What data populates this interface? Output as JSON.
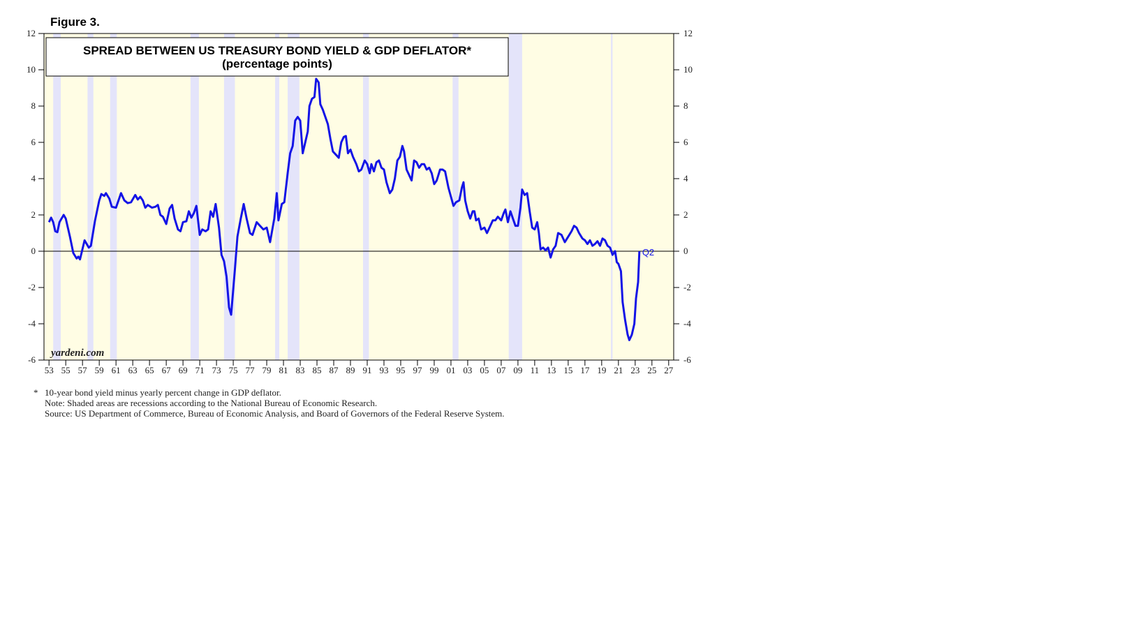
{
  "chart_data": {
    "type": "line",
    "figure_label": "Figure 3.",
    "title": "SPREAD BETWEEN US TREASURY BOND YIELD & GDP DEFLATOR*",
    "subtitle": "(percentage points)",
    "source_mark": "yardeni.com",
    "annotation": "Q2",
    "footnotes": [
      "*",
      "10-year bond yield minus yearly percent change in GDP deflator.",
      "Note: Shaded areas are recessions according to the National Bureau of Economic Research.",
      "Source: US Department of Commerce, Bureau of Economic Analysis, and Board of Governors of the Federal Reserve System."
    ],
    "color": "#1414e6",
    "recession_color": "#e4e4fa",
    "background_color": "#fffde4",
    "recessions": [
      [
        1953.5,
        1954.4
      ],
      [
        1957.6,
        1958.3
      ],
      [
        1960.3,
        1961.1
      ],
      [
        1969.9,
        1970.9
      ],
      [
        1973.9,
        1975.2
      ],
      [
        1980.0,
        1980.5
      ],
      [
        1981.5,
        1982.9
      ],
      [
        1990.5,
        1991.2
      ],
      [
        2001.2,
        2001.9
      ],
      [
        2007.9,
        2009.5
      ],
      [
        2020.1,
        2020.3
      ]
    ],
    "xlim": [
      1952.4,
      2027.6
    ],
    "xticks": [
      {
        "value": 1953,
        "label": "53"
      },
      {
        "value": 1955,
        "label": "55"
      },
      {
        "value": 1957,
        "label": "57"
      },
      {
        "value": 1959,
        "label": "59"
      },
      {
        "value": 1961,
        "label": "61"
      },
      {
        "value": 1963,
        "label": "63"
      },
      {
        "value": 1965,
        "label": "65"
      },
      {
        "value": 1967,
        "label": "67"
      },
      {
        "value": 1969,
        "label": "69"
      },
      {
        "value": 1971,
        "label": "71"
      },
      {
        "value": 1973,
        "label": "73"
      },
      {
        "value": 1975,
        "label": "75"
      },
      {
        "value": 1977,
        "label": "77"
      },
      {
        "value": 1979,
        "label": "79"
      },
      {
        "value": 1981,
        "label": "81"
      },
      {
        "value": 1983,
        "label": "83"
      },
      {
        "value": 1985,
        "label": "85"
      },
      {
        "value": 1987,
        "label": "87"
      },
      {
        "value": 1989,
        "label": "89"
      },
      {
        "value": 1991,
        "label": "91"
      },
      {
        "value": 1993,
        "label": "93"
      },
      {
        "value": 1995,
        "label": "95"
      },
      {
        "value": 1997,
        "label": "97"
      },
      {
        "value": 1999,
        "label": "99"
      },
      {
        "value": 2001,
        "label": "01"
      },
      {
        "value": 2003,
        "label": "03"
      },
      {
        "value": 2005,
        "label": "05"
      },
      {
        "value": 2007,
        "label": "07"
      },
      {
        "value": 2009,
        "label": "09"
      },
      {
        "value": 2011,
        "label": "11"
      },
      {
        "value": 2013,
        "label": "13"
      },
      {
        "value": 2015,
        "label": "15"
      },
      {
        "value": 2017,
        "label": "17"
      },
      {
        "value": 2019,
        "label": "19"
      },
      {
        "value": 2021,
        "label": "21"
      },
      {
        "value": 2023,
        "label": "23"
      },
      {
        "value": 2025,
        "label": "25"
      },
      {
        "value": 2027,
        "label": "27"
      }
    ],
    "ylim": [
      -6,
      12
    ],
    "yticks": [
      -6,
      -4,
      -2,
      0,
      2,
      4,
      6,
      8,
      10,
      12
    ],
    "y2lim": [
      -6,
      12
    ],
    "y2ticks": [
      -6,
      -4,
      -2,
      0,
      2,
      4,
      6,
      8,
      10,
      12
    ],
    "x": [
      1953.0,
      1953.25,
      1953.5,
      1953.75,
      1954.0,
      1954.25,
      1954.75,
      1955.0,
      1955.5,
      1955.9,
      1956.3,
      1956.5,
      1956.7,
      1957.25,
      1957.75,
      1958.0,
      1958.5,
      1959.0,
      1959.25,
      1959.6,
      1959.8,
      1960.2,
      1960.5,
      1961.0,
      1961.3,
      1961.6,
      1962.0,
      1962.4,
      1962.8,
      1963.3,
      1963.6,
      1963.9,
      1964.2,
      1964.5,
      1964.8,
      1965.3,
      1965.7,
      1966.0,
      1966.3,
      1966.6,
      1967.0,
      1967.4,
      1967.7,
      1968.0,
      1968.4,
      1968.7,
      1969.0,
      1969.4,
      1969.7,
      1970.0,
      1970.3,
      1970.6,
      1971.0,
      1971.3,
      1971.7,
      1972.0,
      1972.3,
      1972.6,
      1972.9,
      1973.3,
      1973.6,
      1973.9,
      1974.2,
      1974.5,
      1974.75,
      1975.2,
      1975.5,
      1975.9,
      1976.25,
      1976.6,
      1977.0,
      1977.3,
      1977.8,
      1978.2,
      1978.6,
      1979.0,
      1979.4,
      1979.9,
      1980.2,
      1980.4,
      1980.8,
      1981.1,
      1981.5,
      1981.8,
      1982.1,
      1982.4,
      1982.7,
      1983.0,
      1983.3,
      1983.6,
      1983.9,
      1984.1,
      1984.4,
      1984.7,
      1984.9,
      1985.2,
      1985.4,
      1985.7,
      1986.0,
      1986.3,
      1986.6,
      1986.9,
      1987.3,
      1987.6,
      1987.9,
      1988.2,
      1988.45,
      1988.7,
      1989.0,
      1989.3,
      1989.7,
      1990.0,
      1990.3,
      1990.7,
      1991.0,
      1991.3,
      1991.5,
      1991.8,
      1992.1,
      1992.4,
      1992.7,
      1993.0,
      1993.3,
      1993.7,
      1994.0,
      1994.3,
      1994.6,
      1994.9,
      1995.2,
      1995.4,
      1995.7,
      1996.0,
      1996.3,
      1996.6,
      1996.9,
      1997.2,
      1997.5,
      1997.8,
      1998.1,
      1998.4,
      1998.7,
      1999.0,
      1999.3,
      1999.7,
      2000.0,
      2000.3,
      2000.7,
      2001.0,
      2001.3,
      2001.6,
      2002.0,
      2002.3,
      2002.5,
      2002.7,
      2003.0,
      2003.3,
      2003.6,
      2003.8,
      2004.0,
      2004.3,
      2004.6,
      2005.0,
      2005.3,
      2005.6,
      2006.0,
      2006.3,
      2006.6,
      2007.0,
      2007.3,
      2007.5,
      2007.8,
      2008.1,
      2008.4,
      2008.7,
      2009.0,
      2009.3,
      2009.5,
      2009.8,
      2010.1,
      2010.4,
      2010.7,
      2011.0,
      2011.3,
      2011.5,
      2011.7,
      2012.0,
      2012.3,
      2012.6,
      2012.9,
      2013.2,
      2013.5,
      2013.8,
      2014.2,
      2014.6,
      2015.0,
      2015.4,
      2015.7,
      2016.0,
      2016.3,
      2016.7,
      2017.0,
      2017.3,
      2017.6,
      2017.9,
      2018.2,
      2018.5,
      2018.8,
      2019.1,
      2019.4,
      2019.7,
      2020.0,
      2020.3,
      2020.6,
      2020.8,
      2021.0,
      2021.3,
      2021.5,
      2021.8,
      2022.1,
      2022.3,
      2022.6,
      2022.9,
      2023.1,
      2023.35,
      2023.5
    ],
    "values": [
      1.6,
      1.85,
      1.6,
      1.1,
      1.05,
      1.6,
      2.0,
      1.8,
      0.8,
      -0.1,
      -0.4,
      -0.3,
      -0.45,
      0.6,
      0.2,
      0.3,
      1.7,
      2.8,
      3.15,
      3.05,
      3.2,
      2.9,
      2.45,
      2.4,
      2.8,
      3.2,
      2.8,
      2.65,
      2.7,
      3.1,
      2.85,
      3.0,
      2.8,
      2.4,
      2.55,
      2.4,
      2.45,
      2.55,
      2.0,
      1.9,
      1.5,
      2.35,
      2.55,
      1.8,
      1.2,
      1.1,
      1.6,
      1.65,
      2.2,
      1.85,
      2.1,
      2.5,
      0.9,
      1.2,
      1.1,
      1.2,
      2.2,
      1.9,
      2.6,
      1.3,
      -0.2,
      -0.55,
      -1.4,
      -3.1,
      -3.5,
      -1.0,
      0.8,
      1.8,
      2.6,
      1.8,
      1.0,
      0.9,
      1.6,
      1.4,
      1.2,
      1.3,
      0.5,
      1.8,
      3.2,
      1.7,
      2.6,
      2.7,
      4.3,
      5.4,
      5.8,
      7.2,
      7.4,
      7.2,
      5.4,
      6.0,
      6.6,
      8.0,
      8.4,
      8.5,
      9.5,
      9.3,
      8.1,
      7.8,
      7.4,
      7.0,
      6.2,
      5.5,
      5.3,
      5.15,
      6.0,
      6.3,
      6.35,
      5.4,
      5.6,
      5.2,
      4.8,
      4.4,
      4.5,
      5.0,
      4.8,
      4.3,
      4.8,
      4.4,
      4.9,
      5.0,
      4.6,
      4.5,
      3.8,
      3.2,
      3.4,
      4.0,
      5.0,
      5.2,
      5.8,
      5.5,
      4.5,
      4.2,
      3.9,
      5.0,
      4.9,
      4.6,
      4.8,
      4.8,
      4.5,
      4.6,
      4.3,
      3.7,
      3.9,
      4.5,
      4.5,
      4.4,
      3.5,
      3.0,
      2.5,
      2.7,
      2.8,
      3.5,
      3.8,
      2.8,
      2.2,
      1.8,
      2.2,
      2.2,
      1.7,
      1.8,
      1.2,
      1.3,
      1.0,
      1.3,
      1.7,
      1.7,
      1.9,
      1.7,
      2.1,
      2.3,
      1.6,
      2.2,
      1.8,
      1.4,
      1.4,
      2.4,
      3.4,
      3.1,
      3.2,
      2.2,
      1.3,
      1.2,
      1.6,
      1.0,
      0.1,
      0.2,
      0.05,
      0.2,
      -0.35,
      0.1,
      0.3,
      1.0,
      0.9,
      0.5,
      0.8,
      1.1,
      1.4,
      1.3,
      1.0,
      0.7,
      0.6,
      0.4,
      0.6,
      0.3,
      0.4,
      0.55,
      0.3,
      0.7,
      0.6,
      0.3,
      0.2,
      -0.2,
      0.0,
      -0.6,
      -0.7,
      -1.1,
      -2.8,
      -3.8,
      -4.6,
      -4.9,
      -4.6,
      -4.0,
      -2.6,
      -1.7,
      0.0
    ]
  }
}
